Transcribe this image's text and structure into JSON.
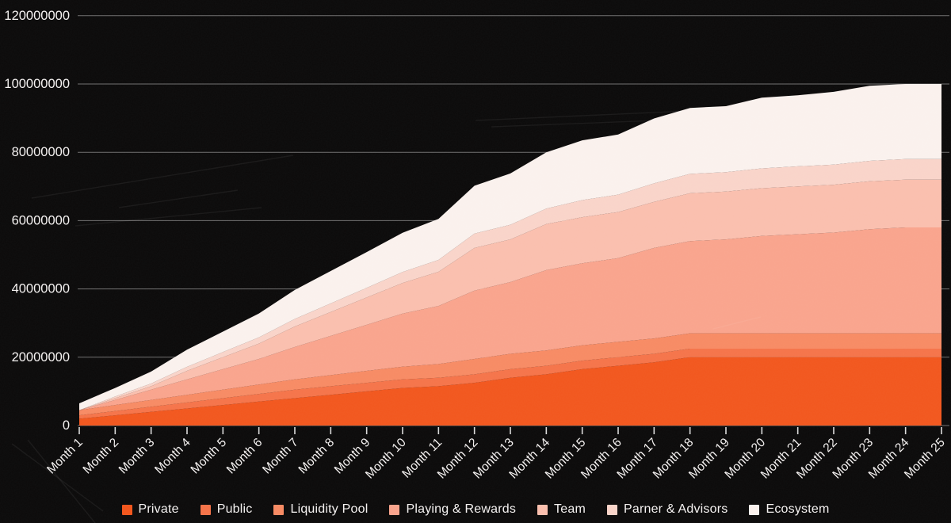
{
  "chart_data": {
    "type": "area",
    "stacked": true,
    "title": "",
    "xlabel": "",
    "ylabel": "",
    "grid": "horizontal",
    "legend_position": "bottom-center",
    "ylim": [
      0,
      120000000
    ],
    "y_ticks": [
      0,
      20000000,
      40000000,
      60000000,
      80000000,
      100000000,
      120000000
    ],
    "y_tick_labels": [
      "0",
      "20000000",
      "40000000",
      "60000000",
      "80000000",
      "100000000",
      "120000000"
    ],
    "categories": [
      "Month 1",
      "Month 2",
      "Month 3",
      "Month 4",
      "Month 5",
      "Month 6",
      "Month 7",
      "Month 8",
      "Month 9",
      "Month 10",
      "Month 11",
      "Month 12",
      "Month 13",
      "Month 14",
      "Month 15",
      "Month 16",
      "Month 17",
      "Month 18",
      "Month 19",
      "Month 20",
      "Month 21",
      "Month 22",
      "Month 23",
      "Month 24",
      "Month 25"
    ],
    "series": [
      {
        "name": "Private",
        "color": "#f2571e",
        "values": [
          2000000,
          3000000,
          4000000,
          5000000,
          6000000,
          7000000,
          8000000,
          9000000,
          10000000,
          11000000,
          11500000,
          12500000,
          14000000,
          15000000,
          16500000,
          17500000,
          18500000,
          20000000,
          20000000,
          20000000,
          20000000,
          20000000,
          20000000,
          20000000,
          20000000
        ]
      },
      {
        "name": "Public",
        "color": "#f5744a",
        "values": [
          1000000,
          1250000,
          1500000,
          1750000,
          2000000,
          2250000,
          2500000,
          2500000,
          2500000,
          2500000,
          2500000,
          2500000,
          2500000,
          2500000,
          2500000,
          2500000,
          2500000,
          2500000,
          2500000,
          2500000,
          2500000,
          2500000,
          2500000,
          2500000,
          2500000
        ]
      },
      {
        "name": "Liquidity Pool",
        "color": "#f78b64",
        "values": [
          1500000,
          1750000,
          2000000,
          2250000,
          2500000,
          2750000,
          3000000,
          3250000,
          3500000,
          3750000,
          4000000,
          4500000,
          4500000,
          4500000,
          4500000,
          4500000,
          4500000,
          4500000,
          4500000,
          4500000,
          4500000,
          4500000,
          4500000,
          4500000,
          4500000
        ]
      },
      {
        "name": "Playing & Rewards",
        "color": "#f9a48d",
        "values": [
          0,
          1500000,
          3000000,
          4500000,
          6000000,
          7500000,
          9500000,
          11500000,
          13500000,
          15500000,
          17000000,
          20000000,
          21000000,
          23500000,
          24000000,
          24500000,
          26500000,
          27000000,
          27500000,
          28500000,
          29000000,
          29500000,
          30500000,
          31000000,
          31000000
        ]
      },
      {
        "name": "Team",
        "color": "#fabfae",
        "values": [
          0,
          500000,
          1000000,
          2500000,
          3500000,
          4500000,
          6000000,
          7000000,
          8000000,
          9000000,
          10000000,
          12500000,
          12500000,
          13500000,
          13500000,
          13500000,
          13500000,
          14000000,
          14000000,
          14000000,
          14000000,
          14000000,
          14000000,
          14000000,
          14000000
        ]
      },
      {
        "name": "Parner & Advisors",
        "color": "#f9d4c9",
        "values": [
          0,
          500000,
          800000,
          1200000,
          1500000,
          1800000,
          2200000,
          2500000,
          2800000,
          3200000,
          3500000,
          4200000,
          4300000,
          4500000,
          5000000,
          5100000,
          5400000,
          5700000,
          5700000,
          5800000,
          5900000,
          5900000,
          6000000,
          6000000,
          6000000
        ]
      },
      {
        "name": "Ecosystem",
        "color": "#faf1ed",
        "values": [
          2000000,
          2500000,
          3500000,
          5000000,
          6000000,
          7000000,
          8500000,
          9500000,
          10500000,
          11500000,
          12000000,
          14000000,
          15000000,
          16500000,
          17500000,
          17600000,
          19000000,
          19300000,
          19300000,
          20700000,
          20800000,
          21300000,
          22000000,
          22000000,
          22000000
        ]
      }
    ]
  },
  "colors": {
    "background": "#0b0a0a",
    "gridline": "rgba(255,255,255,0.42)",
    "axis_tick": "rgba(255,255,255,0.85)",
    "axis_label": "#f5f2f1"
  }
}
